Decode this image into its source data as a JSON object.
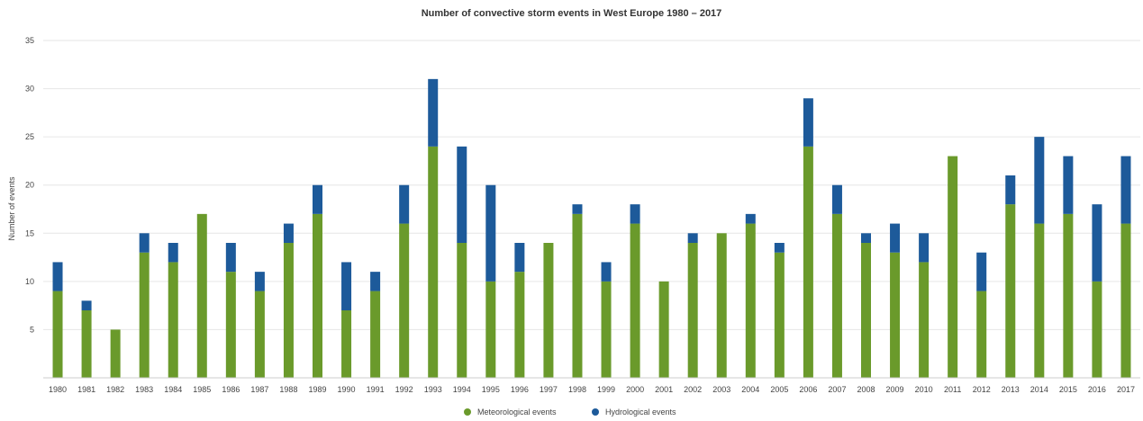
{
  "chart_data": {
    "type": "bar",
    "stacked": true,
    "title": "Number of convective storm events in West Europe 1980 – 2017",
    "xlabel": "",
    "ylabel": "Number of events",
    "ylim": [
      0,
      35
    ],
    "yticks": [
      5,
      10,
      15,
      20,
      25,
      30,
      35
    ],
    "grid": true,
    "legend_position": "bottom-center",
    "categories": [
      "1980",
      "1981",
      "1982",
      "1983",
      "1984",
      "1985",
      "1986",
      "1987",
      "1988",
      "1989",
      "1990",
      "1991",
      "1992",
      "1993",
      "1994",
      "1995",
      "1996",
      "1997",
      "1998",
      "1999",
      "2000",
      "2001",
      "2002",
      "2003",
      "2004",
      "2005",
      "2006",
      "2007",
      "2008",
      "2009",
      "2010",
      "2011",
      "2012",
      "2013",
      "2014",
      "2015",
      "2016",
      "2017"
    ],
    "series": [
      {
        "name": "Meteorological events",
        "color": "#6a9a2b",
        "values": [
          9,
          7,
          5,
          13,
          12,
          17,
          11,
          9,
          14,
          17,
          7,
          9,
          16,
          24,
          14,
          10,
          11,
          14,
          17,
          10,
          16,
          10,
          14,
          15,
          16,
          13,
          24,
          17,
          14,
          13,
          12,
          23,
          9,
          18,
          16,
          17,
          10,
          16
        ]
      },
      {
        "name": "Hydrological events",
        "color": "#1d5a9a",
        "values": [
          3,
          1,
          0,
          2,
          2,
          0,
          3,
          2,
          2,
          3,
          5,
          2,
          4,
          7,
          10,
          10,
          3,
          0,
          1,
          2,
          2,
          0,
          1,
          0,
          1,
          1,
          5,
          3,
          1,
          3,
          3,
          0,
          4,
          3,
          9,
          6,
          8,
          7
        ]
      }
    ]
  }
}
